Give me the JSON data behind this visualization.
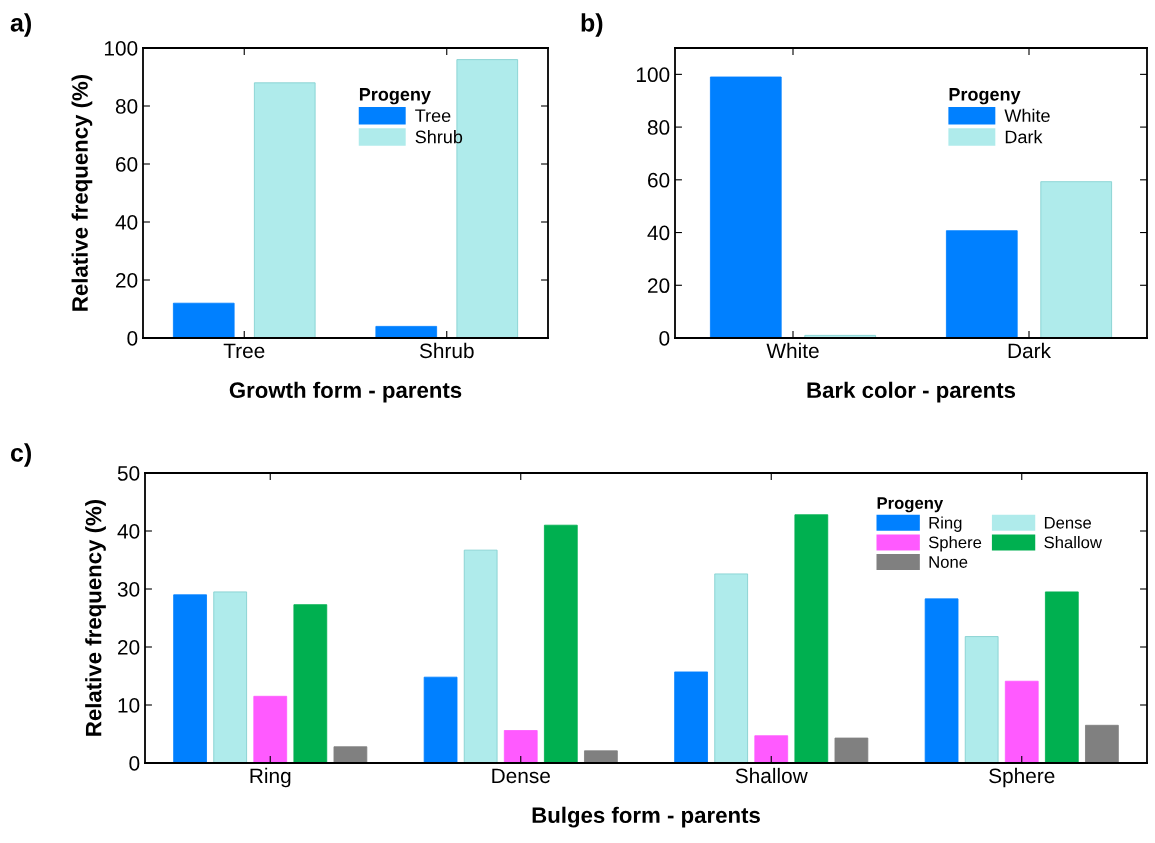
{
  "chart_data": [
    {
      "type": "bar",
      "xlabel": "Growth form - parents",
      "ylabel": "Relative frequency (%)",
      "legend_title": "Progeny",
      "legend": "top right",
      "annotations": [
        "a)"
      ],
      "categories": [
        "Tree",
        "Shrub"
      ],
      "ylim": [
        0,
        100
      ],
      "yticks": [
        0,
        20,
        40,
        60,
        80,
        100
      ],
      "grid": false,
      "series": [
        {
          "name": "Tree",
          "color": "#0080ff",
          "values": [
            12,
            4
          ]
        },
        {
          "name": "Shrub",
          "color": "#afebeb",
          "values": [
            88,
            96
          ]
        }
      ]
    },
    {
      "type": "bar",
      "xlabel": "Bark color - parents",
      "legend_title": "Progeny",
      "legend": "top right",
      "annotations": [
        "b)"
      ],
      "categories": [
        "White",
        "Dark"
      ],
      "ylim": [
        0,
        110
      ],
      "yticks": [
        0,
        20,
        40,
        60,
        80,
        100
      ],
      "grid": false,
      "series": [
        {
          "name": "White",
          "color": "#0080ff",
          "values": [
            99,
            40.7
          ]
        },
        {
          "name": "Dark",
          "color": "#afebeb",
          "values": [
            1,
            59.3
          ]
        }
      ]
    },
    {
      "type": "bar",
      "xlabel": "Bulges form - parents",
      "ylabel": "Relative frequency (%)",
      "legend_title": "Progeny",
      "legend": "top right",
      "annotations": [
        "c)"
      ],
      "categories": [
        "Ring",
        "Dense",
        "Shallow",
        "Sphere"
      ],
      "ylim": [
        0,
        50
      ],
      "yticks": [
        0,
        10,
        20,
        30,
        40,
        50
      ],
      "grid": false,
      "series": [
        {
          "name": "Ring",
          "color": "#0080ff",
          "values": [
            29,
            14.8,
            15.7,
            28.3
          ]
        },
        {
          "name": "Dense",
          "color": "#afebeb",
          "values": [
            29.5,
            36.7,
            32.6,
            21.8
          ]
        },
        {
          "name": "Sphere",
          "color": "#ff5aff",
          "values": [
            11.5,
            5.6,
            4.7,
            14.1
          ]
        },
        {
          "name": "Shallow",
          "color": "#00b050",
          "values": [
            27.3,
            41,
            42.8,
            29.5
          ]
        },
        {
          "name": "None",
          "color": "#808080",
          "values": [
            2.8,
            2.1,
            4.3,
            6.5
          ]
        }
      ]
    }
  ]
}
